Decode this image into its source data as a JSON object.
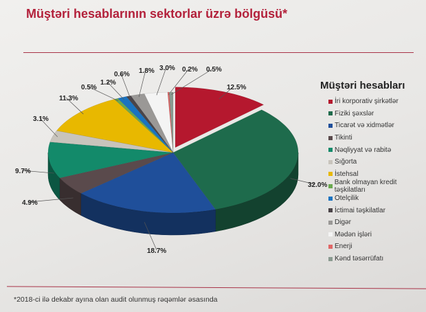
{
  "title": "Müştəri hesablarının sektorlar üzrə bölgüsü*",
  "footnote": "*2018-ci ilə dekabr ayına olan audit olunmuş rəqəmlər əsasında",
  "chart_data": {
    "type": "pie",
    "style": "3d",
    "legend_title": "Müştəri hesabları",
    "legend_position": "right",
    "categories": [
      "İri korporativ şirkətlər",
      "Fiziki şəxslər",
      "Ticarət və xidmətlər",
      "Tikinti",
      "Nəqliyyat və rabitə",
      "Sığorta",
      "İstehsal",
      "Bank olmayan kredit təşkilatları",
      "Otelçilik",
      "İctimai təşkilatlar",
      "Digər",
      "Mədən işləri",
      "Enerji",
      "Kənd təsərrüfatı"
    ],
    "values": [
      12.5,
      32.0,
      18.7,
      4.9,
      9.7,
      3.1,
      11.3,
      0.5,
      1.2,
      0.6,
      1.8,
      3.0,
      0.2,
      0.5
    ],
    "labels": [
      "12.5%",
      "32.0%",
      "18.7%",
      "4.9%",
      "9.7%",
      "3.1%",
      "11.3%",
      "0.5%",
      "1.2%",
      "0.6%",
      "1.8%",
      "3.0%",
      "0.2%",
      "0.5%"
    ],
    "colors": [
      "#b5182e",
      "#1e6b4c",
      "#1f4f9a",
      "#5a4a4c",
      "#138a6a",
      "#c8c4bc",
      "#e8b800",
      "#6aa84f",
      "#1a73c0",
      "#4a4448",
      "#9a9896",
      "#f4f4f4",
      "#e06666",
      "#8a9a90"
    ]
  }
}
